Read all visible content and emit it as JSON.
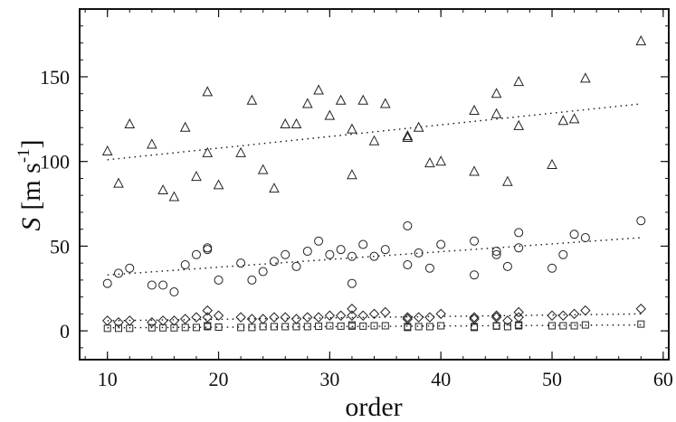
{
  "chart_data": {
    "type": "scatter",
    "xlabel": "order",
    "ylabel_parts": {
      "var": "S",
      "open": "[m s",
      "sup": "-1",
      "close": "]"
    },
    "xlim": [
      7.5,
      60.5
    ],
    "ylim": [
      -17,
      190
    ],
    "x_ticks": [
      10,
      20,
      30,
      40,
      50,
      60
    ],
    "y_ticks": [
      0,
      50,
      100,
      150
    ],
    "x_minor_step": 2,
    "y_minor_step": 10,
    "grid": false,
    "series": [
      {
        "marker": "triangle",
        "points": [
          [
            10,
            106
          ],
          [
            11,
            87
          ],
          [
            12,
            122
          ],
          [
            14,
            110
          ],
          [
            15,
            83
          ],
          [
            16,
            79
          ],
          [
            17,
            120
          ],
          [
            18,
            91
          ],
          [
            19,
            141
          ],
          [
            19,
            105
          ],
          [
            20,
            86
          ],
          [
            22,
            105
          ],
          [
            23,
            136
          ],
          [
            24,
            95
          ],
          [
            25,
            84
          ],
          [
            26,
            122
          ],
          [
            27,
            122
          ],
          [
            28,
            134
          ],
          [
            29,
            142
          ],
          [
            30,
            127
          ],
          [
            31,
            136
          ],
          [
            32,
            119
          ],
          [
            32,
            92
          ],
          [
            33,
            136
          ],
          [
            34,
            112
          ],
          [
            35,
            134
          ],
          [
            37,
            114
          ],
          [
            37,
            115
          ],
          [
            38,
            120
          ],
          [
            39,
            99
          ],
          [
            40,
            100
          ],
          [
            43,
            94
          ],
          [
            43,
            130
          ],
          [
            45,
            128
          ],
          [
            45,
            140
          ],
          [
            46,
            88
          ],
          [
            47,
            147
          ],
          [
            47,
            121
          ],
          [
            50,
            98
          ],
          [
            51,
            124
          ],
          [
            52,
            125
          ],
          [
            53,
            149
          ],
          [
            58,
            171
          ]
        ],
        "trend": [
          [
            10,
            101
          ],
          [
            58,
            134
          ]
        ]
      },
      {
        "marker": "circle",
        "points": [
          [
            10,
            28
          ],
          [
            11,
            34
          ],
          [
            12,
            37
          ],
          [
            14,
            27
          ],
          [
            15,
            27
          ],
          [
            16,
            23
          ],
          [
            17,
            39
          ],
          [
            18,
            45
          ],
          [
            19,
            48
          ],
          [
            19,
            49
          ],
          [
            20,
            30
          ],
          [
            22,
            40
          ],
          [
            23,
            30
          ],
          [
            24,
            35
          ],
          [
            25,
            41
          ],
          [
            26,
            45
          ],
          [
            27,
            38
          ],
          [
            28,
            47
          ],
          [
            29,
            53
          ],
          [
            30,
            45
          ],
          [
            31,
            48
          ],
          [
            32,
            28
          ],
          [
            32,
            44
          ],
          [
            33,
            51
          ],
          [
            34,
            44
          ],
          [
            35,
            48
          ],
          [
            37,
            62
          ],
          [
            37,
            39
          ],
          [
            38,
            46
          ],
          [
            39,
            37
          ],
          [
            40,
            51
          ],
          [
            43,
            53
          ],
          [
            43,
            33
          ],
          [
            45,
            45
          ],
          [
            45,
            47
          ],
          [
            46,
            38
          ],
          [
            47,
            49
          ],
          [
            47,
            58
          ],
          [
            50,
            37
          ],
          [
            51,
            45
          ],
          [
            52,
            57
          ],
          [
            53,
            55
          ],
          [
            58,
            65
          ]
        ],
        "trend": [
          [
            10,
            33
          ],
          [
            58,
            55
          ]
        ]
      },
      {
        "marker": "diamond",
        "points": [
          [
            10,
            6
          ],
          [
            11,
            5
          ],
          [
            12,
            6
          ],
          [
            14,
            5
          ],
          [
            15,
            6
          ],
          [
            16,
            6
          ],
          [
            17,
            7
          ],
          [
            18,
            8
          ],
          [
            19,
            8
          ],
          [
            19,
            12
          ],
          [
            20,
            9
          ],
          [
            22,
            8
          ],
          [
            23,
            7
          ],
          [
            24,
            7
          ],
          [
            25,
            8
          ],
          [
            26,
            8
          ],
          [
            27,
            7
          ],
          [
            28,
            8
          ],
          [
            29,
            8
          ],
          [
            30,
            9
          ],
          [
            31,
            9
          ],
          [
            32,
            9
          ],
          [
            32,
            13
          ],
          [
            33,
            9
          ],
          [
            34,
            10
          ],
          [
            35,
            11
          ],
          [
            37,
            7
          ],
          [
            37,
            8
          ],
          [
            38,
            8
          ],
          [
            39,
            8
          ],
          [
            40,
            10
          ],
          [
            43,
            7
          ],
          [
            43,
            8
          ],
          [
            45,
            9
          ],
          [
            45,
            8
          ],
          [
            46,
            6
          ],
          [
            47,
            8
          ],
          [
            47,
            11
          ],
          [
            50,
            9
          ],
          [
            51,
            9
          ],
          [
            52,
            10
          ],
          [
            53,
            12
          ],
          [
            58,
            13
          ]
        ],
        "trend": [
          [
            10,
            6
          ],
          [
            58,
            10
          ]
        ]
      },
      {
        "marker": "square",
        "points": [
          [
            10,
            1.5
          ],
          [
            11,
            1.5
          ],
          [
            12,
            1.5
          ],
          [
            14,
            1.8
          ],
          [
            15,
            1.8
          ],
          [
            16,
            1.8
          ],
          [
            17,
            2
          ],
          [
            18,
            2
          ],
          [
            19,
            2.5
          ],
          [
            19,
            3
          ],
          [
            20,
            2.2
          ],
          [
            22,
            2
          ],
          [
            23,
            2
          ],
          [
            24,
            2.5
          ],
          [
            25,
            2.5
          ],
          [
            26,
            2.5
          ],
          [
            27,
            2.5
          ],
          [
            28,
            2.5
          ],
          [
            29,
            2.7
          ],
          [
            30,
            3
          ],
          [
            31,
            2.8
          ],
          [
            32,
            2.8
          ],
          [
            32,
            3.5
          ],
          [
            33,
            2.8
          ],
          [
            34,
            3
          ],
          [
            35,
            3
          ],
          [
            37,
            2
          ],
          [
            37,
            2.5
          ],
          [
            38,
            2.5
          ],
          [
            39,
            2.5
          ],
          [
            40,
            3
          ],
          [
            43,
            2
          ],
          [
            43,
            2.5
          ],
          [
            45,
            2.8
          ],
          [
            45,
            3
          ],
          [
            46,
            2.5
          ],
          [
            47,
            3
          ],
          [
            47,
            3.5
          ],
          [
            50,
            3
          ],
          [
            51,
            3
          ],
          [
            52,
            3
          ],
          [
            53,
            3.5
          ],
          [
            58,
            4
          ]
        ],
        "trend": [
          [
            10,
            1.8
          ],
          [
            58,
            3.5
          ]
        ]
      }
    ]
  }
}
